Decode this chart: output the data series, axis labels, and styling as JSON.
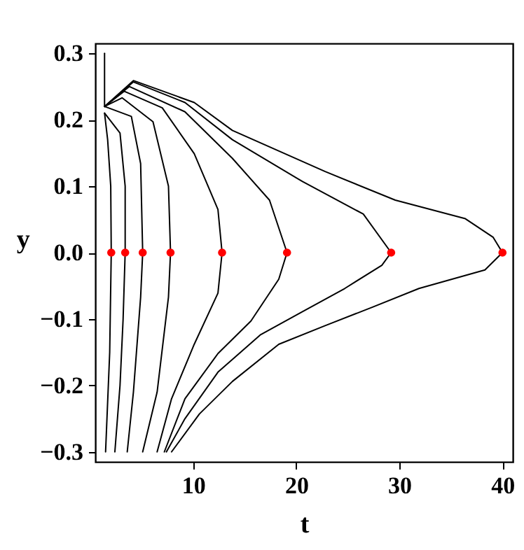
{
  "chart_data": {
    "type": "line",
    "xlabel": "t",
    "ylabel": "y",
    "xlim": [
      0.5,
      41
    ],
    "ylim": [
      -0.315,
      0.315
    ],
    "xticks": [
      10,
      20,
      30,
      40
    ],
    "yticks": [
      {
        "value": -0.3,
        "label": "−0.3"
      },
      {
        "value": -0.2,
        "label": "−0.2"
      },
      {
        "value": -0.1,
        "label": "−0.1"
      },
      {
        "value": 0,
        "label": "0.0"
      },
      0.1,
      0.2,
      0.3
    ],
    "grid": false,
    "series": [
      {
        "color": "#000000",
        "x": [
          1.4,
          1.4
        ],
        "values": [
          0.3,
          0.22
        ]
      },
      {
        "color": "#000000",
        "x": [
          1.4,
          1.7,
          2.0,
          2.05,
          1.9,
          1.5
        ],
        "values": [
          0.21,
          0.17,
          0.1,
          0,
          -0.15,
          -0.3
        ]
      },
      {
        "color": "#000000",
        "x": [
          1.4,
          2.9,
          3.4,
          3.4,
          3.2,
          2.9,
          2.4
        ],
        "values": [
          0.21,
          0.18,
          0.1,
          0,
          -0.1,
          -0.2,
          -0.3
        ]
      },
      {
        "color": "#000000",
        "x": [
          1.4,
          4.0,
          4.9,
          5.1,
          4.9,
          4.2,
          3.6
        ],
        "values": [
          0.22,
          0.205,
          0.134,
          0,
          -0.067,
          -0.21,
          -0.3
        ]
      },
      {
        "color": "#000000",
        "x": [
          1.4,
          3.1,
          6.1,
          7.6,
          7.8,
          7.6,
          6.5,
          5.1
        ],
        "values": [
          0.22,
          0.233,
          0.197,
          0.1,
          0,
          -0.067,
          -0.21,
          -0.3
        ]
      },
      {
        "color": "#000000",
        "x": [
          1.4,
          3.3,
          7.0,
          10.1,
          12.4,
          12.8,
          12.4,
          10.1,
          7.9,
          6.5
        ],
        "values": [
          0.22,
          0.243,
          0.218,
          0.149,
          0.065,
          0,
          -0.061,
          -0.138,
          -0.22,
          -0.3
        ]
      },
      {
        "color": "#000000",
        "x": [
          1.4,
          3.8,
          9.2,
          13.8,
          17.4,
          19.1,
          18.3,
          15.6,
          12.4,
          9.2,
          7.2
        ],
        "values": [
          0.22,
          0.25,
          0.212,
          0.142,
          0.079,
          0,
          -0.04,
          -0.103,
          -0.152,
          -0.22,
          -0.3
        ]
      },
      {
        "color": "#000000",
        "x": [
          1.4,
          4.2,
          9.2,
          13.8,
          20.6,
          26.5,
          29.2,
          28.3,
          24.7,
          20.6,
          16.5,
          12.4,
          9.2,
          7.4
        ],
        "values": [
          0.22,
          0.257,
          0.226,
          0.17,
          0.107,
          0.058,
          0,
          -0.019,
          -0.054,
          -0.089,
          -0.124,
          -0.18,
          -0.25,
          -0.3
        ]
      },
      {
        "color": "#000000",
        "x": [
          1.4,
          4.2,
          10.1,
          13.8,
          22.8,
          29.6,
          36.4,
          39.1,
          40,
          38.3,
          31.9,
          27.4,
          22.8,
          18.3,
          13.8,
          10.6,
          7.9
        ],
        "values": [
          0.22,
          0.259,
          0.226,
          0.184,
          0.122,
          0.079,
          0.051,
          0.023,
          0,
          -0.026,
          -0.054,
          -0.082,
          -0.11,
          -0.138,
          -0.194,
          -0.243,
          -0.3
        ]
      },
      {
        "type": "scatter",
        "color": "#ff0000",
        "marker": "circle",
        "x": [
          2.05,
          3.4,
          5.1,
          7.8,
          12.8,
          19.1,
          29.2,
          40
        ],
        "values": [
          0,
          0,
          0,
          0,
          0,
          0,
          0,
          0
        ]
      }
    ]
  }
}
